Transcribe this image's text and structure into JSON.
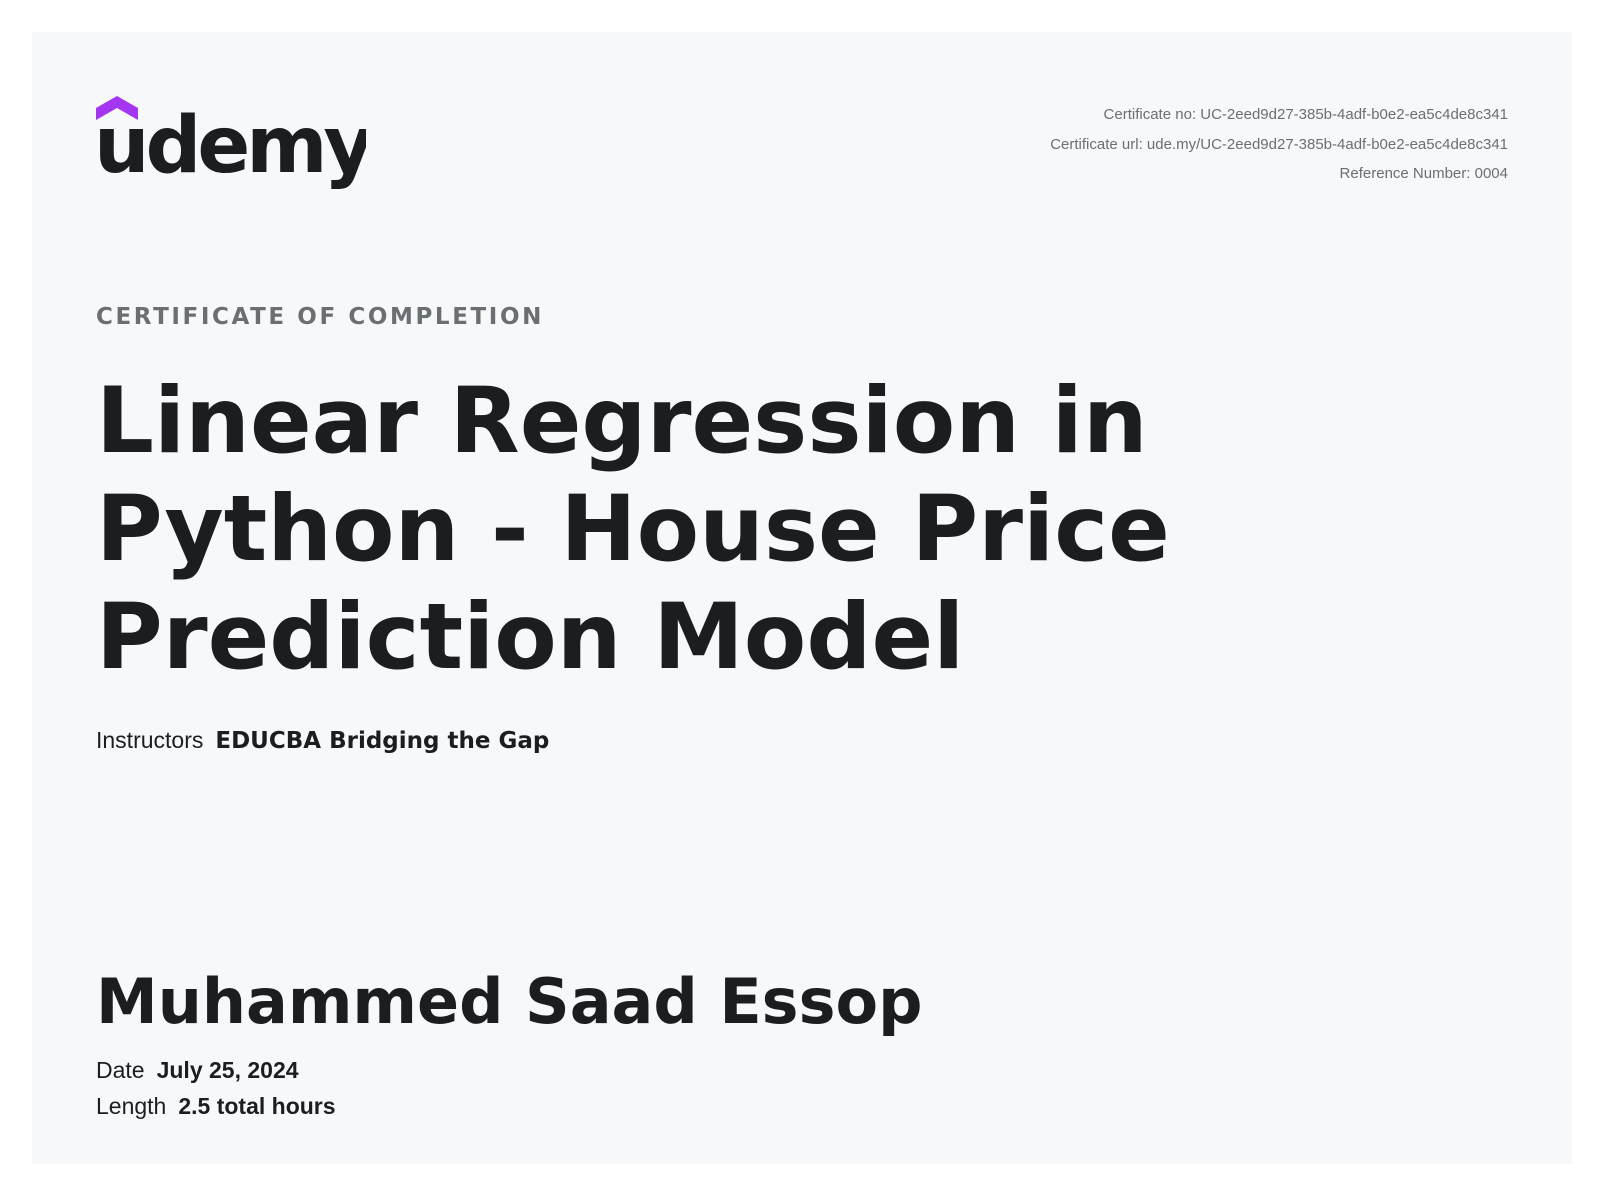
{
  "brand": {
    "name": "udemy",
    "logo_icon": "udemy-cap-icon",
    "accent_color": "#a435f0"
  },
  "meta": {
    "certificate_no_label": "Certificate no:",
    "certificate_no": "UC-2eed9d27-385b-4adf-b0e2-ea5c4de8c341",
    "certificate_url_label": "Certificate url:",
    "certificate_url": "ude.my/UC-2eed9d27-385b-4adf-b0e2-ea5c4de8c341",
    "reference_label": "Reference Number:",
    "reference_number": "0004"
  },
  "certificate": {
    "heading": "CERTIFICATE OF COMPLETION",
    "course_title": "Linear Regression in Python - House Price Prediction Model",
    "instructors_label": "Instructors",
    "instructors": "EDUCBA Bridging the Gap",
    "student_name": "Muhammed Saad Essop",
    "date_label": "Date",
    "date": "July 25, 2024",
    "length_label": "Length",
    "length": "2.5 total hours"
  }
}
